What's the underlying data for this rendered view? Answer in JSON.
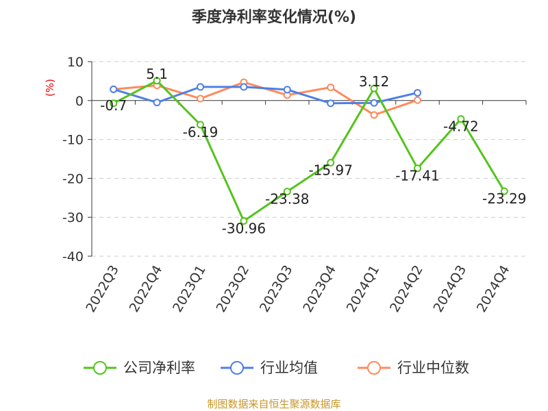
{
  "chart_data": {
    "type": "line",
    "title": "季度净利率变化情况(%)",
    "ylabel": "(%)",
    "ylim": [
      -40,
      10
    ],
    "yticks": [
      10,
      0,
      -10,
      -20,
      -30,
      -40
    ],
    "grid": true,
    "legend_placement": "bottom",
    "categories": [
      "2022Q3",
      "2022Q4",
      "2023Q1",
      "2023Q2",
      "2023Q3",
      "2023Q4",
      "2024Q1",
      "2024Q2",
      "2024Q3",
      "2024Q4"
    ],
    "series": [
      {
        "name": "公司净利率",
        "color": "#52c41a",
        "values": [
          -0.7,
          5.1,
          -6.19,
          -30.96,
          -23.38,
          -15.97,
          3.12,
          -17.41,
          -4.72,
          -23.29
        ],
        "labels": [
          "-0.7",
          "5.1",
          "-6.19",
          "-30.96",
          "-23.38",
          "-15.97",
          "3.12",
          "-17.41",
          "-4.72",
          "-23.29"
        ]
      },
      {
        "name": "行业均值",
        "color": "#4e7fe6",
        "values": [
          2.9,
          -0.5,
          3.5,
          3.5,
          2.8,
          -0.7,
          -0.6,
          2.0,
          null,
          null
        ]
      },
      {
        "name": "行业中位数",
        "color": "#ff8a5b",
        "values": [
          2.9,
          3.9,
          0.5,
          4.7,
          1.4,
          3.4,
          -3.7,
          0.1,
          null,
          null
        ]
      }
    ]
  },
  "footer": "制图数据来自恒生聚源数据库"
}
